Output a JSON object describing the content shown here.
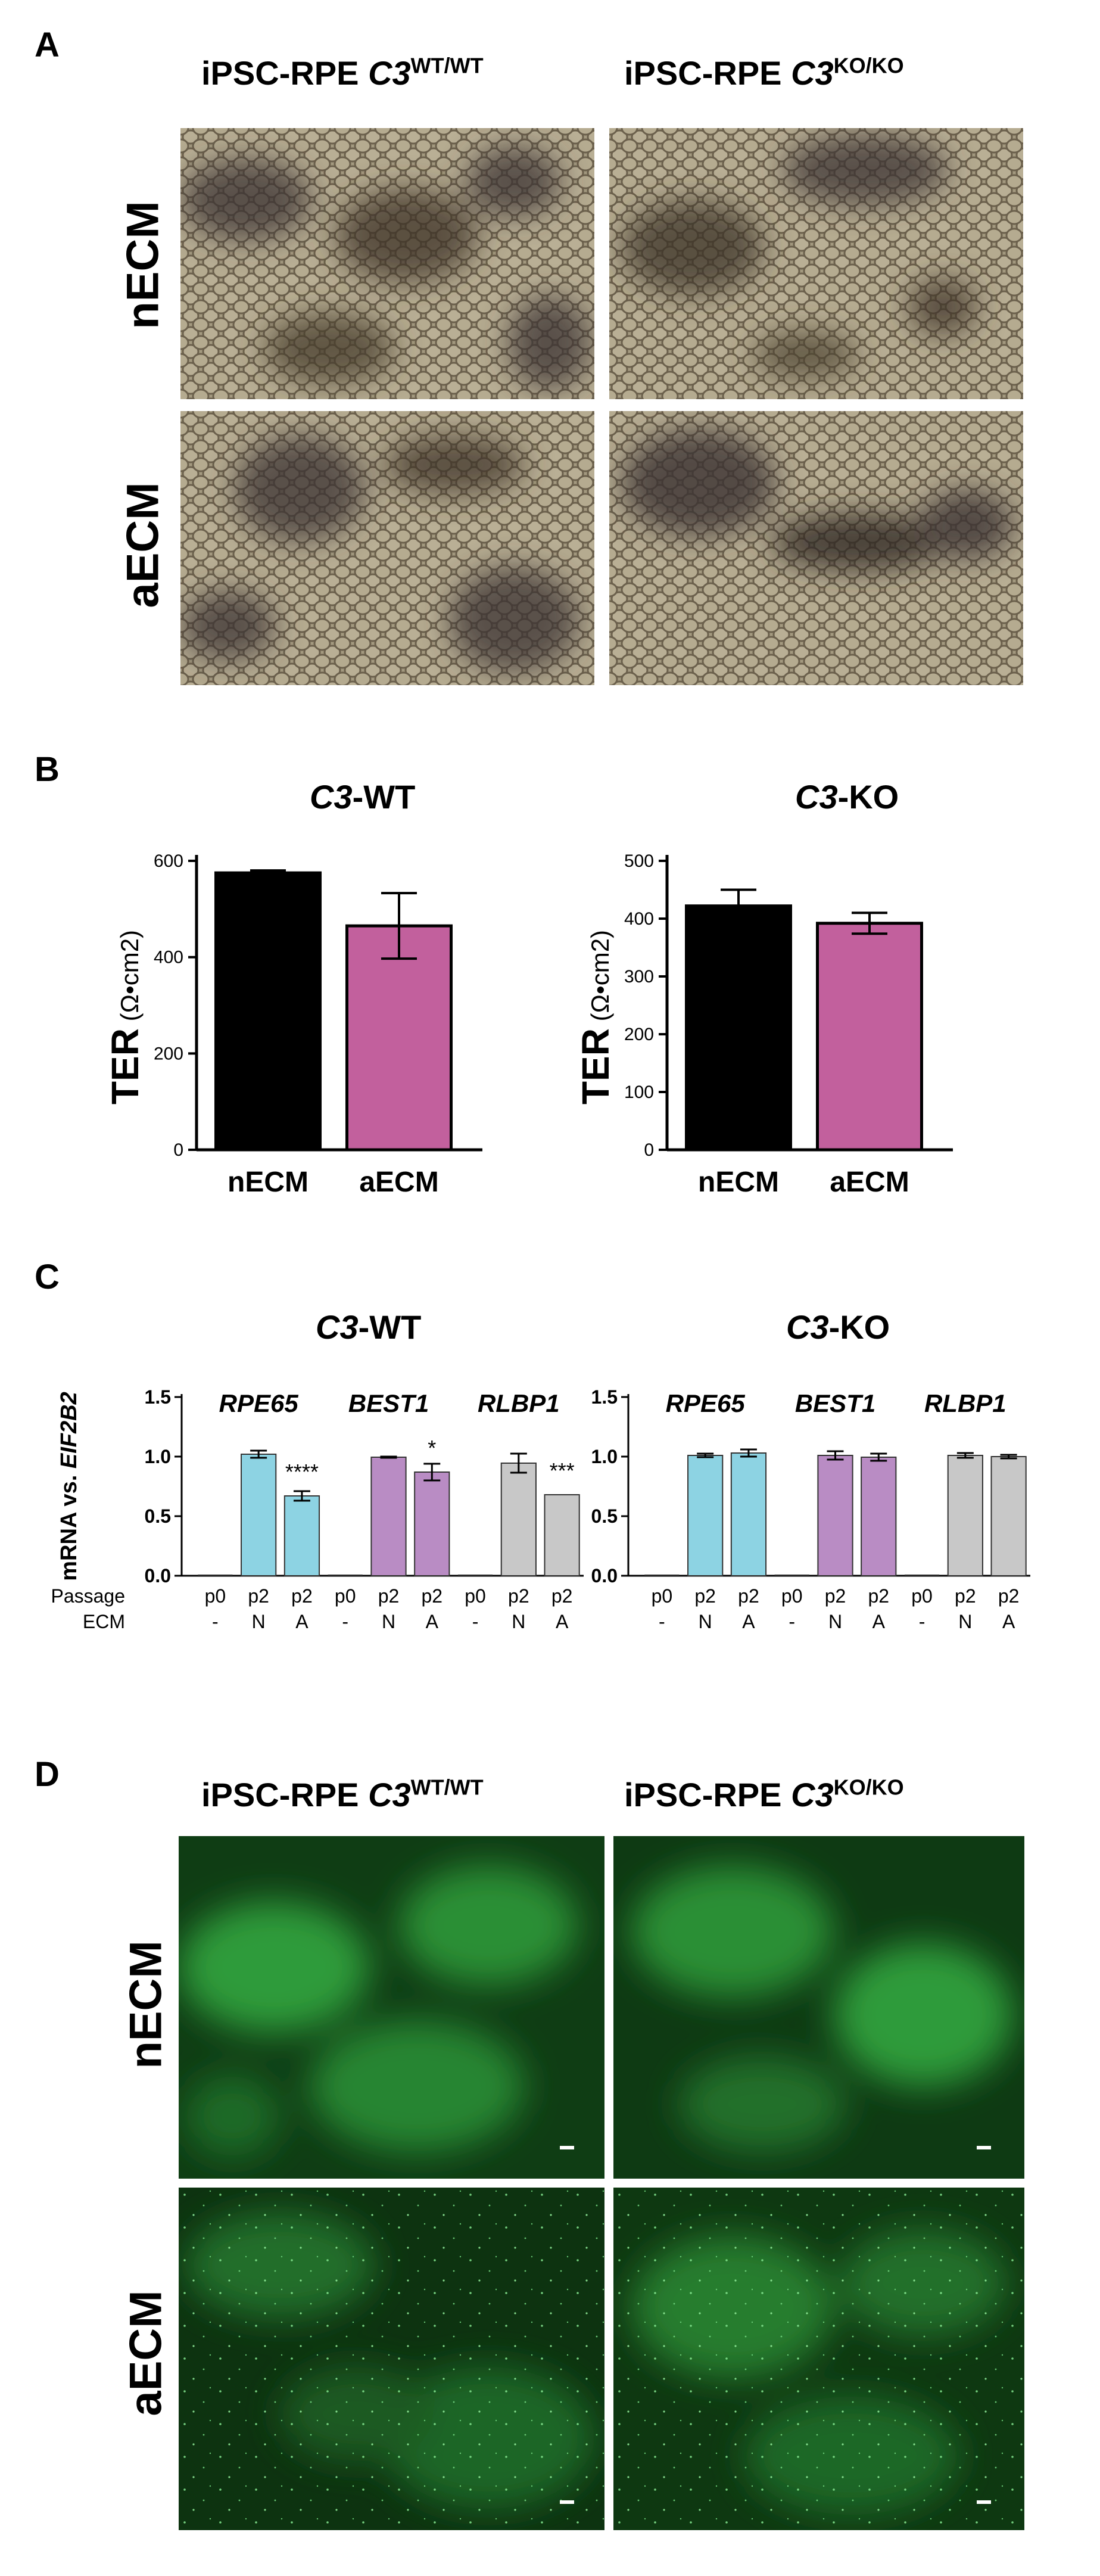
{
  "panel_A": {
    "letter": "A",
    "col_labels": [
      {
        "prefix": "iPSC-RPE ",
        "gene": "C3",
        "genotype": "WT/WT"
      },
      {
        "prefix": "iPSC-RPE ",
        "gene": "C3",
        "genotype": "KO/KO"
      }
    ],
    "row_labels": [
      "nECM",
      "aECM"
    ]
  },
  "panel_B": {
    "letter": "B",
    "charts": [
      {
        "title": "C3-WT",
        "title_gene": "C3",
        "title_suffix": "-WT"
      },
      {
        "title": "C3-KO",
        "title_gene": "C3",
        "title_suffix": "-KO"
      }
    ]
  },
  "panel_C": {
    "letter": "C",
    "charts": [
      {
        "title_gene": "C3",
        "title_suffix": "-WT"
      },
      {
        "title_gene": "C3",
        "title_suffix": "-KO"
      }
    ],
    "row_label_passage": "Passage",
    "row_label_ecm": "ECM"
  },
  "panel_D": {
    "letter": "D",
    "col_labels": [
      {
        "prefix": "iPSC-RPE ",
        "gene": "C3",
        "genotype": "WT/WT"
      },
      {
        "prefix": "iPSC-RPE ",
        "gene": "C3",
        "genotype": "KO/KO"
      }
    ],
    "row_labels": [
      "nECM",
      "aECM"
    ]
  },
  "colors": {
    "black_bar": "#000000",
    "magenta_bar": "#c2609d",
    "cyan_bar": "#8dd3e3",
    "purple_bar": "#b98cc4",
    "gray_bar": "#c8c8c8"
  },
  "chart_data": [
    {
      "type": "bar",
      "title": "C3-WT",
      "ylabel": "TER (Ω•cm2)",
      "ylim": [
        0,
        600
      ],
      "yticks": [
        "0",
        "200",
        "400",
        "600"
      ],
      "categories": [
        "nECM",
        "aECM"
      ],
      "values": [
        575,
        465
      ],
      "errors": [
        5,
        68
      ],
      "colors": [
        "#000000",
        "#c2609d"
      ]
    },
    {
      "type": "bar",
      "title": "C3-KO",
      "ylabel": "TER (Ω•cm2)",
      "ylim": [
        0,
        500
      ],
      "yticks": [
        "0",
        "100",
        "200",
        "300",
        "400",
        "500"
      ],
      "categories": [
        "nECM",
        "aECM"
      ],
      "values": [
        422,
        392
      ],
      "errors": [
        28,
        18
      ],
      "colors": [
        "#000000",
        "#c2609d"
      ]
    },
    {
      "type": "bar",
      "title": "C3-WT",
      "ylabel_prefix": "mRNA vs. ",
      "ylabel_gene": "EIF2B2",
      "ylim": [
        0,
        1.5
      ],
      "yticks": [
        "0.0",
        "0.5",
        "1.0",
        "1.5"
      ],
      "groups": [
        "RPE65",
        "BEST1",
        "RLBP1"
      ],
      "passage": [
        "p0",
        "p2",
        "p2",
        "p0",
        "p2",
        "p2",
        "p0",
        "p2",
        "p2"
      ],
      "ecm": [
        "-",
        "N",
        "A",
        "-",
        "N",
        "A",
        "-",
        "N",
        "A"
      ],
      "values": [
        0,
        1.02,
        0.67,
        0,
        0.995,
        0.87,
        0,
        0.945,
        0.68
      ],
      "errors": [
        0,
        0.03,
        0.04,
        0,
        0.005,
        0.07,
        0,
        0.08,
        0
      ],
      "significance": [
        "",
        "",
        "****",
        "",
        "",
        "*",
        "",
        "",
        "***"
      ],
      "colors": [
        "#8dd3e3",
        "#8dd3e3",
        "#8dd3e3",
        "#b98cc4",
        "#b98cc4",
        "#b98cc4",
        "#c8c8c8",
        "#c8c8c8",
        "#c8c8c8"
      ]
    },
    {
      "type": "bar",
      "title": "C3-KO",
      "ylim": [
        0,
        1.5
      ],
      "yticks": [
        "0.0",
        "0.5",
        "1.0",
        "1.5"
      ],
      "groups": [
        "RPE65",
        "BEST1",
        "RLBP1"
      ],
      "passage": [
        "p0",
        "p2",
        "p2",
        "p0",
        "p2",
        "p2",
        "p0",
        "p2",
        "p2"
      ],
      "ecm": [
        "-",
        "N",
        "A",
        "-",
        "N",
        "A",
        "-",
        "N",
        "A"
      ],
      "values": [
        0,
        1.01,
        1.03,
        0,
        1.01,
        0.995,
        0,
        1.01,
        1.0
      ],
      "errors": [
        0,
        0.015,
        0.03,
        0,
        0.035,
        0.03,
        0,
        0.02,
        0.015
      ],
      "significance": [
        "",
        "",
        "",
        "",
        "",
        "",
        "",
        "",
        ""
      ],
      "colors": [
        "#8dd3e3",
        "#8dd3e3",
        "#8dd3e3",
        "#b98cc4",
        "#b98cc4",
        "#b98cc4",
        "#c8c8c8",
        "#c8c8c8",
        "#c8c8c8"
      ]
    }
  ]
}
